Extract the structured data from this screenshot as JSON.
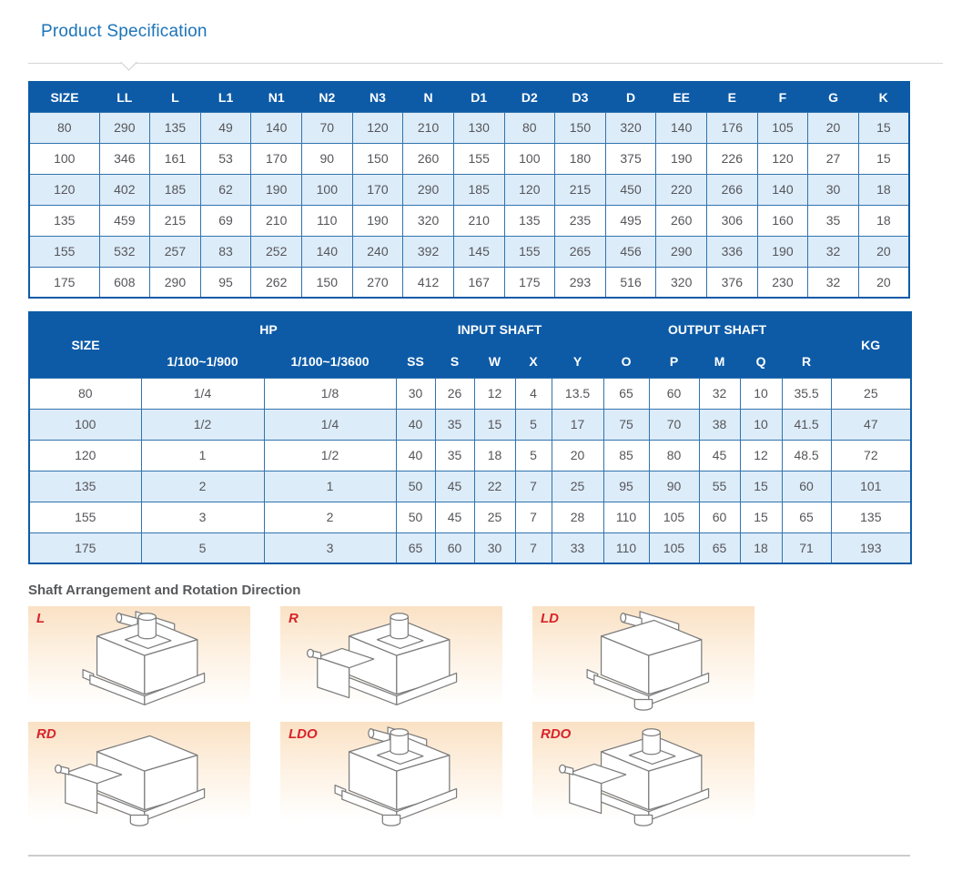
{
  "page_title": "Product Specification",
  "colors": {
    "accent": "#1c74b9",
    "header_bg": "#0d5ba7",
    "row_alt": "#ddecf9",
    "grid_border": "#3173ae",
    "cell_text": "#55565a",
    "label_red": "#d8232a",
    "diagram_top": "#fae1c4",
    "section_title": "#58595b",
    "line_gray": "#cccccc"
  },
  "dimension_table": {
    "columns": [
      "SIZE",
      "LL",
      "L",
      "L1",
      "N1",
      "N2",
      "N3",
      "N",
      "D1",
      "D2",
      "D3",
      "D",
      "EE",
      "E",
      "F",
      "G",
      "K"
    ],
    "rows": [
      [
        "80",
        "290",
        "135",
        "49",
        "140",
        "70",
        "120",
        "210",
        "130",
        "80",
        "150",
        "320",
        "140",
        "176",
        "105",
        "20",
        "15"
      ],
      [
        "100",
        "346",
        "161",
        "53",
        "170",
        "90",
        "150",
        "260",
        "155",
        "100",
        "180",
        "375",
        "190",
        "226",
        "120",
        "27",
        "15"
      ],
      [
        "120",
        "402",
        "185",
        "62",
        "190",
        "100",
        "170",
        "290",
        "185",
        "120",
        "215",
        "450",
        "220",
        "266",
        "140",
        "30",
        "18"
      ],
      [
        "135",
        "459",
        "215",
        "69",
        "210",
        "110",
        "190",
        "320",
        "210",
        "135",
        "235",
        "495",
        "260",
        "306",
        "160",
        "35",
        "18"
      ],
      [
        "155",
        "532",
        "257",
        "83",
        "252",
        "140",
        "240",
        "392",
        "145",
        "155",
        "265",
        "456",
        "290",
        "336",
        "190",
        "32",
        "20"
      ],
      [
        "175",
        "608",
        "290",
        "95",
        "262",
        "150",
        "270",
        "412",
        "167",
        "175",
        "293",
        "516",
        "320",
        "376",
        "230",
        "32",
        "20"
      ]
    ]
  },
  "power_table": {
    "group_headers": [
      {
        "label": "SIZE"
      },
      {
        "label": "HP"
      },
      {
        "label": "INPUT SHAFT"
      },
      {
        "label": "OUTPUT SHAFT"
      },
      {
        "label": "KG"
      }
    ],
    "sub_headers": [
      "1/100~1/900",
      "1/100~1/3600",
      "SS",
      "S",
      "W",
      "X",
      "Y",
      "O",
      "P",
      "M",
      "Q",
      "R"
    ],
    "rows": [
      [
        "80",
        "1/4",
        "1/8",
        "30",
        "26",
        "12",
        "4",
        "13.5",
        "65",
        "60",
        "32",
        "10",
        "35.5",
        "25"
      ],
      [
        "100",
        "1/2",
        "1/4",
        "40",
        "35",
        "15",
        "5",
        "17",
        "75",
        "70",
        "38",
        "10",
        "41.5",
        "47"
      ],
      [
        "120",
        "1",
        "1/2",
        "40",
        "35",
        "18",
        "5",
        "20",
        "85",
        "80",
        "45",
        "12",
        "48.5",
        "72"
      ],
      [
        "135",
        "2",
        "1",
        "50",
        "45",
        "22",
        "7",
        "25",
        "95",
        "90",
        "55",
        "15",
        "60",
        "101"
      ],
      [
        "155",
        "3",
        "2",
        "50",
        "45",
        "25",
        "7",
        "28",
        "110",
        "105",
        "60",
        "15",
        "65",
        "135"
      ],
      [
        "175",
        "5",
        "3",
        "65",
        "60",
        "30",
        "7",
        "33",
        "110",
        "105",
        "65",
        "18",
        "71",
        "193"
      ]
    ]
  },
  "shaft_section": {
    "title": "Shaft Arrangement and Rotation Direction",
    "diagrams": [
      {
        "label": "L",
        "top_shaft": true,
        "motor": "back",
        "bottom_shaft": false
      },
      {
        "label": "R",
        "top_shaft": true,
        "motor": "left",
        "bottom_shaft": false
      },
      {
        "label": "LD",
        "top_shaft": false,
        "motor": "back",
        "bottom_shaft": true
      },
      {
        "label": "RD",
        "top_shaft": false,
        "motor": "left",
        "bottom_shaft": true
      },
      {
        "label": "LDO",
        "top_shaft": true,
        "motor": "back",
        "bottom_shaft": true
      },
      {
        "label": "RDO",
        "top_shaft": true,
        "motor": "left",
        "bottom_shaft": true
      }
    ]
  }
}
